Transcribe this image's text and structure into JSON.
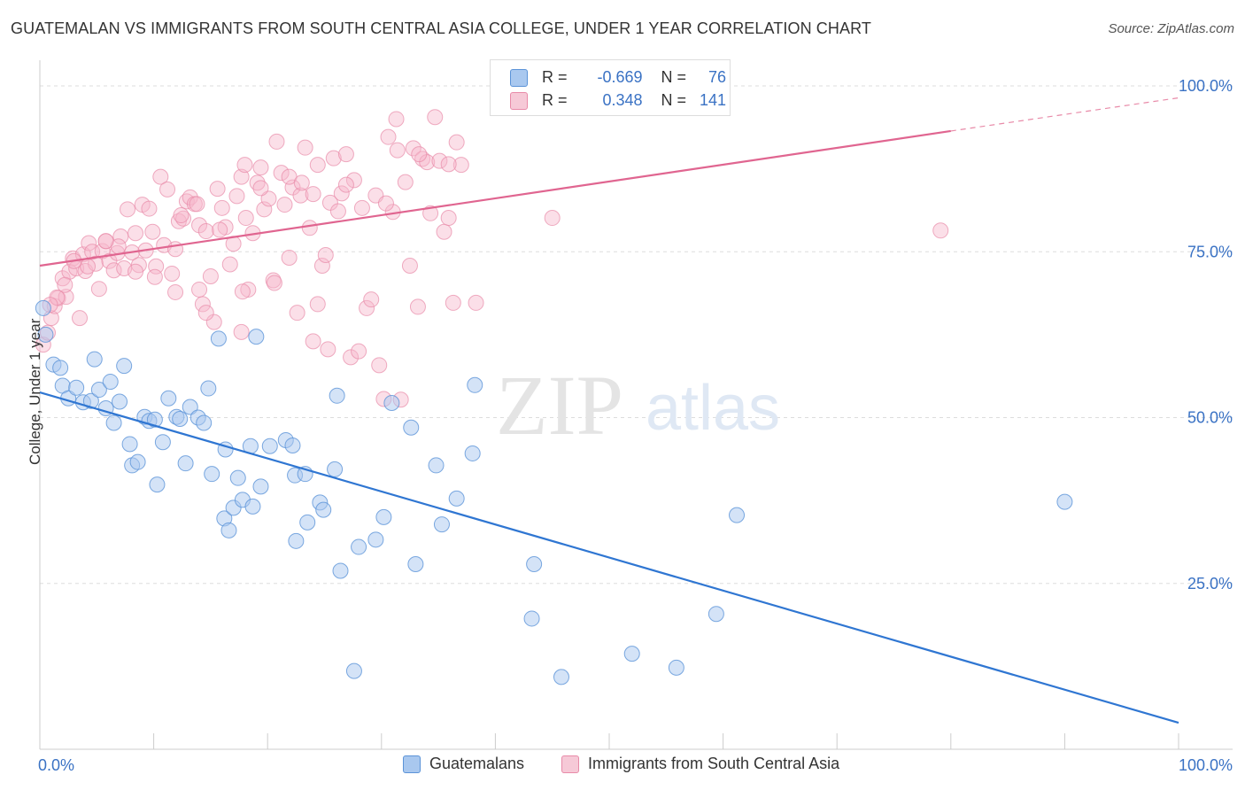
{
  "title": "GUATEMALAN VS IMMIGRANTS FROM SOUTH CENTRAL ASIA COLLEGE, UNDER 1 YEAR CORRELATION CHART",
  "source": "Source: ZipAtlas.com",
  "watermark": {
    "zip": "ZIP",
    "atlas": "atlas"
  },
  "colors": {
    "blue_fill": "#a9c8ef",
    "blue_stroke": "#5b93d8",
    "blue_line": "#2f76d2",
    "pink_fill": "#f6b9cc",
    "pink_stroke": "#e88aa8",
    "pink_line": "#e06590",
    "tick_label": "#3a72c4",
    "grid": "#dddddd"
  },
  "stats": [
    {
      "r_label": "R =",
      "r_value": "-0.669",
      "n_label": "N =",
      "n_value": "76"
    },
    {
      "r_label": "R =",
      "r_value": "0.348",
      "n_label": "N =",
      "n_value": "141"
    }
  ],
  "legend": [
    "Guatemalans",
    "Immigrants from South Central Asia"
  ],
  "chart_data": {
    "type": "scatter",
    "title": "GUATEMALAN VS IMMIGRANTS FROM SOUTH CENTRAL ASIA COLLEGE, UNDER 1 YEAR CORRELATION CHART",
    "xlabel": "",
    "ylabel": "College, Under 1 year",
    "xlim": [
      0,
      100
    ],
    "ylim": [
      0,
      102
    ],
    "x_tick_labels": [
      "0.0%",
      "100.0%"
    ],
    "y_tick_labels": [
      "25.0%",
      "50.0%",
      "75.0%",
      "100.0%"
    ],
    "y_ticks": [
      25,
      50,
      75,
      100
    ],
    "grid": "horizontal dashed",
    "legend_position": "bottom",
    "series": [
      {
        "name": "Guatemalans",
        "trend": {
          "x0": 0,
          "y0": 53.8,
          "x1": 100,
          "y1": 4.0
        },
        "points": [
          [
            0.5,
            62.5
          ],
          [
            1.2,
            58.0
          ],
          [
            1.8,
            57.5
          ],
          [
            2.0,
            54.8
          ],
          [
            2.5,
            52.9
          ],
          [
            3.2,
            54.5
          ],
          [
            3.8,
            52.3
          ],
          [
            4.5,
            52.5
          ],
          [
            4.8,
            58.8
          ],
          [
            5.2,
            54.2
          ],
          [
            5.8,
            51.4
          ],
          [
            6.2,
            55.4
          ],
          [
            6.5,
            49.2
          ],
          [
            7.0,
            52.4
          ],
          [
            7.4,
            57.8
          ],
          [
            7.9,
            46.0
          ],
          [
            8.1,
            42.8
          ],
          [
            8.6,
            43.3
          ],
          [
            9.2,
            50.1
          ],
          [
            9.6,
            49.5
          ],
          [
            10.3,
            39.9
          ],
          [
            10.1,
            49.7
          ],
          [
            10.8,
            46.3
          ],
          [
            11.3,
            52.9
          ],
          [
            12.0,
            50.1
          ],
          [
            12.3,
            49.8
          ],
          [
            12.8,
            43.1
          ],
          [
            13.2,
            51.6
          ],
          [
            13.9,
            50.0
          ],
          [
            14.4,
            49.2
          ],
          [
            14.8,
            54.4
          ],
          [
            15.1,
            41.5
          ],
          [
            15.7,
            61.9
          ],
          [
            16.2,
            34.8
          ],
          [
            16.6,
            33.0
          ],
          [
            17.0,
            36.4
          ],
          [
            17.4,
            40.9
          ],
          [
            17.8,
            37.6
          ],
          [
            18.7,
            36.6
          ],
          [
            19.0,
            62.2
          ],
          [
            18.5,
            45.7
          ],
          [
            19.4,
            39.6
          ],
          [
            20.2,
            45.7
          ],
          [
            21.6,
            46.6
          ],
          [
            22.2,
            45.8
          ],
          [
            22.5,
            31.4
          ],
          [
            22.4,
            41.3
          ],
          [
            23.3,
            41.5
          ],
          [
            23.5,
            34.2
          ],
          [
            24.6,
            37.2
          ],
          [
            24.9,
            36.1
          ],
          [
            25.9,
            42.2
          ],
          [
            26.1,
            53.3
          ],
          [
            26.4,
            26.9
          ],
          [
            27.6,
            11.8
          ],
          [
            28.0,
            30.5
          ],
          [
            29.5,
            31.6
          ],
          [
            30.2,
            35.0
          ],
          [
            30.9,
            52.2
          ],
          [
            32.6,
            48.5
          ],
          [
            33.0,
            27.9
          ],
          [
            34.8,
            42.8
          ],
          [
            35.3,
            33.9
          ],
          [
            36.6,
            37.8
          ],
          [
            38.0,
            44.6
          ],
          [
            38.2,
            54.9
          ],
          [
            43.2,
            19.7
          ],
          [
            43.4,
            27.9
          ],
          [
            45.8,
            10.9
          ],
          [
            52.0,
            14.4
          ],
          [
            55.9,
            12.3
          ],
          [
            59.4,
            20.4
          ],
          [
            61.2,
            35.3
          ],
          [
            90.0,
            37.3
          ],
          [
            0.3,
            66.5
          ],
          [
            16.3,
            45.2
          ]
        ]
      },
      {
        "name": "Immigrants from South Central Asia",
        "trend": {
          "x0": 0,
          "y0": 72.9,
          "x1": 80,
          "y1": 93.2,
          "dash_to_x": 100,
          "dash_to_y": 98.2
        },
        "points": [
          [
            0.3,
            61.0
          ],
          [
            0.7,
            62.8
          ],
          [
            1.0,
            65.0
          ],
          [
            1.3,
            66.8
          ],
          [
            1.6,
            68.0
          ],
          [
            2.0,
            71.0
          ],
          [
            2.3,
            68.2
          ],
          [
            2.6,
            72.0
          ],
          [
            2.9,
            74.0
          ],
          [
            3.2,
            72.5
          ],
          [
            3.5,
            65.0
          ],
          [
            3.8,
            74.6
          ],
          [
            4.0,
            72.1
          ],
          [
            4.3,
            76.3
          ],
          [
            4.6,
            75.0
          ],
          [
            4.9,
            73.2
          ],
          [
            5.2,
            69.4
          ],
          [
            5.5,
            75.1
          ],
          [
            5.8,
            76.6
          ],
          [
            6.1,
            73.6
          ],
          [
            6.5,
            72.2
          ],
          [
            6.8,
            74.8
          ],
          [
            7.1,
            77.3
          ],
          [
            7.4,
            72.5
          ],
          [
            7.7,
            81.4
          ],
          [
            8.1,
            74.9
          ],
          [
            8.4,
            77.8
          ],
          [
            8.7,
            73.0
          ],
          [
            9.0,
            82.1
          ],
          [
            9.3,
            75.2
          ],
          [
            9.6,
            81.5
          ],
          [
            9.9,
            78.0
          ],
          [
            10.2,
            72.8
          ],
          [
            10.6,
            86.3
          ],
          [
            10.9,
            76.0
          ],
          [
            11.2,
            84.4
          ],
          [
            11.6,
            71.7
          ],
          [
            11.9,
            75.4
          ],
          [
            12.2,
            79.6
          ],
          [
            12.6,
            80.0
          ],
          [
            12.9,
            82.6
          ],
          [
            13.2,
            83.2
          ],
          [
            13.6,
            82.2
          ],
          [
            14.0,
            79.0
          ],
          [
            14.3,
            67.1
          ],
          [
            14.6,
            78.1
          ],
          [
            15.0,
            71.3
          ],
          [
            15.3,
            64.4
          ],
          [
            15.6,
            84.5
          ],
          [
            16.0,
            81.6
          ],
          [
            16.3,
            78.7
          ],
          [
            16.7,
            73.1
          ],
          [
            17.0,
            76.2
          ],
          [
            17.3,
            83.4
          ],
          [
            17.7,
            86.3
          ],
          [
            18.0,
            88.1
          ],
          [
            18.3,
            69.3
          ],
          [
            18.7,
            77.8
          ],
          [
            19.1,
            85.4
          ],
          [
            19.4,
            87.7
          ],
          [
            19.7,
            81.4
          ],
          [
            20.1,
            83.0
          ],
          [
            20.5,
            70.7
          ],
          [
            20.8,
            91.6
          ],
          [
            21.2,
            86.9
          ],
          [
            21.5,
            82.1
          ],
          [
            21.9,
            74.1
          ],
          [
            22.2,
            84.7
          ],
          [
            22.6,
            65.8
          ],
          [
            22.9,
            83.5
          ],
          [
            23.3,
            90.7
          ],
          [
            23.7,
            78.6
          ],
          [
            24.0,
            83.7
          ],
          [
            24.4,
            88.1
          ],
          [
            24.8,
            72.9
          ],
          [
            25.1,
            74.5
          ],
          [
            25.5,
            82.4
          ],
          [
            25.8,
            89.1
          ],
          [
            26.2,
            81.1
          ],
          [
            26.5,
            83.8
          ],
          [
            26.9,
            89.7
          ],
          [
            27.3,
            59.1
          ],
          [
            27.6,
            85.8
          ],
          [
            28.0,
            60.0
          ],
          [
            28.3,
            81.6
          ],
          [
            28.7,
            66.5
          ],
          [
            29.1,
            67.8
          ],
          [
            29.5,
            83.5
          ],
          [
            29.8,
            57.9
          ],
          [
            30.2,
            52.8
          ],
          [
            30.6,
            92.3
          ],
          [
            31.0,
            81.0
          ],
          [
            31.3,
            95.0
          ],
          [
            31.7,
            52.7
          ],
          [
            32.1,
            85.5
          ],
          [
            32.5,
            72.9
          ],
          [
            32.8,
            90.6
          ],
          [
            33.2,
            66.7
          ],
          [
            33.6,
            89.0
          ],
          [
            34.0,
            88.5
          ],
          [
            34.3,
            80.8
          ],
          [
            34.7,
            95.3
          ],
          [
            35.1,
            88.7
          ],
          [
            35.5,
            78.0
          ],
          [
            35.9,
            80.1
          ],
          [
            36.3,
            67.3
          ],
          [
            36.6,
            91.5
          ],
          [
            37.0,
            88.1
          ],
          [
            24.4,
            67.1
          ],
          [
            20.6,
            70.3
          ],
          [
            17.8,
            69.0
          ],
          [
            14.0,
            69.3
          ],
          [
            11.9,
            68.9
          ],
          [
            10.1,
            71.2
          ],
          [
            8.4,
            72.0
          ],
          [
            6.9,
            75.8
          ],
          [
            5.8,
            76.6
          ],
          [
            4.2,
            72.8
          ],
          [
            3.0,
            73.6
          ],
          [
            2.2,
            70.0
          ],
          [
            1.5,
            68.1
          ],
          [
            0.9,
            67.0
          ],
          [
            12.4,
            80.5
          ],
          [
            13.8,
            82.2
          ],
          [
            15.8,
            78.3
          ],
          [
            18.1,
            80.1
          ],
          [
            19.4,
            84.6
          ],
          [
            21.9,
            86.3
          ],
          [
            23.0,
            85.4
          ],
          [
            26.9,
            85.1
          ],
          [
            30.4,
            82.3
          ],
          [
            31.4,
            90.3
          ],
          [
            33.3,
            89.7
          ],
          [
            35.9,
            88.2
          ],
          [
            45.0,
            80.1
          ],
          [
            79.1,
            78.2
          ],
          [
            38.3,
            67.3
          ],
          [
            25.3,
            60.3
          ],
          [
            17.7,
            62.9
          ],
          [
            14.6,
            65.8
          ],
          [
            24.0,
            61.5
          ]
        ]
      }
    ]
  }
}
